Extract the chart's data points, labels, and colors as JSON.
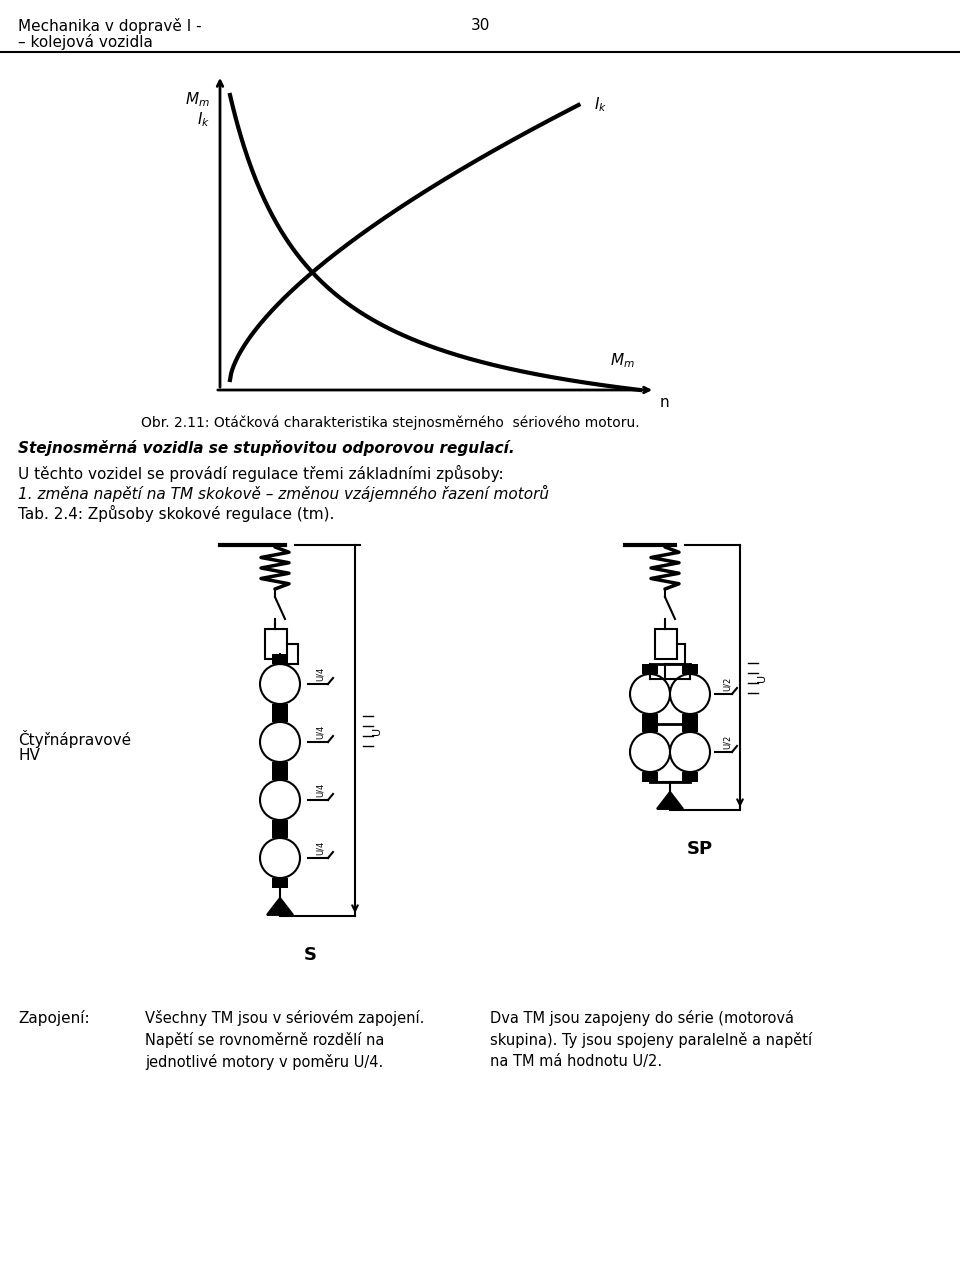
{
  "page_title_left1": "Mechanika v dopravě I -",
  "page_title_left2": "– kolejová vozidla",
  "page_number": "30",
  "caption_graph": "Obr. 2.11: Otáčková charakteristika stejnosměrného  sériového motoru.",
  "bold_heading": "Stejnosměrná vozidla se stupňovitou odporovou regulací.",
  "text1": "U těchto vozidel se provádí regulace třemi základními způsoby:",
  "text2_italic": "1. změna napětí na TM skokově – změnou vzájemného řazení motorů",
  "text3": "Tab. 2.4: Způsoby skokové regulace (tm).",
  "label_ctyrnap1": "Čtyřnápravové",
  "label_ctyrnap2": "HV",
  "label_S": "S",
  "label_SP": "SP",
  "label_zapojeni": "Zapojení:",
  "text_S1": "Všechny TM jsou v sériovém zapojení.",
  "text_S2": "Napětí se rovnoměrně rozdělí na",
  "text_S3": "jednotlivé motory v poměru U/4.",
  "text_SP1": "Dva TM jsou zapojeny do série (motorová",
  "text_SP2": "skupina). Ty jsou spojeny paralelně a napětí",
  "text_SP3": "na TM má hodnotu U/2.",
  "bg_color": "#ffffff",
  "text_color": "#000000"
}
